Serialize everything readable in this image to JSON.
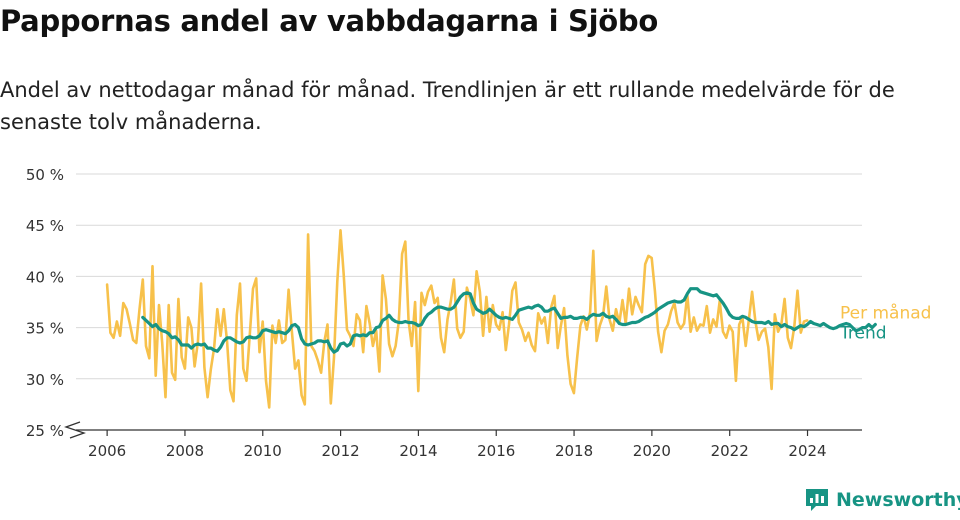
{
  "header": {
    "title": "Pappornas andel av vabbdagarna i Sjöbo",
    "subtitle": "Andel av nettodagar månad för månad. Trendlinjen är ett rullande medelvärde för de senaste tolv månaderna."
  },
  "brand": {
    "name": "Newsworthy",
    "icon": "newsworthy-chart-icon",
    "color": "#179484"
  },
  "chart_data": {
    "type": "line",
    "title": "",
    "xlabel": "",
    "ylabel": "",
    "xlim": [
      2005.2,
      2025.4
    ],
    "ylim": [
      25,
      50
    ],
    "y_axis_break": true,
    "yticks": [
      "25 %",
      "30 %",
      "35 %",
      "40 %",
      "45 %",
      "50 %"
    ],
    "ytick_values": [
      25,
      30,
      35,
      40,
      45,
      50
    ],
    "xticks": [
      "2006",
      "2008",
      "2010",
      "2012",
      "2014",
      "2016",
      "2018",
      "2020",
      "2022",
      "2024"
    ],
    "xtick_values": [
      2006,
      2008,
      2010,
      2012,
      2014,
      2016,
      2018,
      2020,
      2022,
      2024
    ],
    "grid": "horizontal",
    "legend": "right, at line ends",
    "series": [
      {
        "name": "Per månad",
        "color": "#f7c14b",
        "x_start": 2006.0,
        "x_step": 0.0833,
        "values": [
          39.2,
          34.5,
          34.0,
          35.6,
          34.2,
          37.4,
          36.8,
          35.4,
          33.8,
          33.5,
          36.8,
          39.7,
          33.2,
          32.0,
          41.0,
          30.3,
          37.2,
          33.5,
          28.2,
          37.2,
          30.6,
          29.9,
          37.8,
          32.1,
          31.0,
          36.0,
          35.0,
          31.2,
          33.6,
          39.3,
          31.1,
          28.2,
          30.9,
          33.0,
          36.8,
          34.2,
          36.8,
          33.6,
          28.9,
          27.8,
          36.2,
          39.3,
          31.0,
          29.8,
          34.2,
          38.8,
          39.8,
          32.6,
          35.6,
          29.8,
          27.2,
          35.2,
          33.5,
          35.7,
          33.5,
          33.8,
          38.7,
          34.6,
          31.0,
          31.8,
          28.4,
          27.5,
          44.1,
          33.2,
          32.7,
          31.8,
          30.6,
          33.6,
          35.3,
          27.6,
          32.1,
          39.5,
          44.5,
          40.2,
          34.8,
          34.2,
          33.2,
          36.3,
          35.7,
          32.6,
          37.1,
          35.4,
          33.2,
          34.7,
          30.7,
          40.1,
          37.8,
          33.4,
          32.2,
          33.2,
          35.6,
          42.2,
          43.4,
          35.6,
          33.2,
          37.5,
          28.8,
          38.4,
          37.2,
          38.5,
          39.1,
          37.4,
          37.9,
          34.0,
          32.6,
          35.8,
          37.5,
          39.7,
          34.9,
          34.0,
          34.6,
          38.9,
          37.8,
          36.2,
          40.5,
          38.5,
          34.2,
          38.0,
          34.6,
          37.2,
          35.3,
          34.8,
          36.5,
          32.8,
          35.3,
          38.6,
          39.4,
          35.5,
          34.8,
          33.7,
          34.5,
          33.3,
          32.7,
          36.4,
          35.4,
          36.0,
          33.5,
          37.0,
          38.1,
          33.0,
          35.2,
          36.9,
          32.3,
          29.5,
          28.6,
          32.0,
          35.2,
          36.1,
          34.8,
          36.5,
          42.5,
          33.7,
          35.2,
          36.1,
          39.0,
          35.8,
          34.7,
          36.8,
          35.4,
          37.7,
          35.4,
          38.8,
          36.3,
          38.0,
          37.2,
          36.5,
          41.2,
          42.0,
          41.8,
          38.6,
          34.6,
          32.6,
          34.7,
          35.3,
          36.6,
          37.4,
          35.5,
          34.9,
          35.4,
          38.2,
          34.6,
          36.0,
          34.7,
          35.3,
          35.2,
          37.1,
          34.5,
          35.8,
          35.1,
          37.6,
          34.6,
          34.0,
          35.2,
          34.6,
          29.8,
          35.3,
          36.0,
          33.2,
          35.8,
          38.5,
          35.6,
          33.8,
          34.6,
          34.9,
          33.1,
          29.0,
          36.3,
          34.6,
          35.3,
          37.8,
          34.0,
          33.0,
          35.1,
          38.6,
          34.5,
          35.6,
          35.7
        ]
      },
      {
        "name": "Trend",
        "color": "#179484",
        "x_start": 2006.9167,
        "x_step": 0.0833,
        "values": [
          36.0,
          35.7,
          35.4,
          35.1,
          35.3,
          34.9,
          34.7,
          34.6,
          34.4,
          34.0,
          34.1,
          33.8,
          33.3,
          33.3,
          33.3,
          33.0,
          33.3,
          33.4,
          33.3,
          33.4,
          33.0,
          33.0,
          32.8,
          32.7,
          33.1,
          33.7,
          34.0,
          34.0,
          33.8,
          33.6,
          33.5,
          33.6,
          34.0,
          34.1,
          34.0,
          34.0,
          34.2,
          34.7,
          34.8,
          34.7,
          34.6,
          34.5,
          34.6,
          34.5,
          34.4,
          34.7,
          35.2,
          35.3,
          35.0,
          33.9,
          33.4,
          33.3,
          33.4,
          33.5,
          33.7,
          33.7,
          33.6,
          33.7,
          33.0,
          32.6,
          32.8,
          33.4,
          33.5,
          33.2,
          33.4,
          34.2,
          34.3,
          34.2,
          34.3,
          34.2,
          34.5,
          34.5,
          35.0,
          35.1,
          35.7,
          35.9,
          36.2,
          35.8,
          35.6,
          35.5,
          35.5,
          35.6,
          35.5,
          35.5,
          35.4,
          35.2,
          35.3,
          35.9,
          36.3,
          36.5,
          36.8,
          37.0,
          37.0,
          36.9,
          36.8,
          36.8,
          37.0,
          37.5,
          38.0,
          38.3,
          38.4,
          38.3,
          37.4,
          36.8,
          36.6,
          36.4,
          36.5,
          36.8,
          36.5,
          36.2,
          36.0,
          35.9,
          36.0,
          35.9,
          35.8,
          36.2,
          36.7,
          36.8,
          36.9,
          37.0,
          36.9,
          37.1,
          37.2,
          37.0,
          36.6,
          36.6,
          36.8,
          36.9,
          36.4,
          35.9,
          36.0,
          36.0,
          36.1,
          35.9,
          35.9,
          36.0,
          36.0,
          35.8,
          36.1,
          36.3,
          36.2,
          36.2,
          36.4,
          36.1,
          36.0,
          36.1,
          35.8,
          35.4,
          35.3,
          35.3,
          35.4,
          35.5,
          35.5,
          35.6,
          35.8,
          36.0,
          36.1,
          36.3,
          36.5,
          36.8,
          37.0,
          37.2,
          37.4,
          37.5,
          37.6,
          37.5,
          37.5,
          37.7,
          38.3,
          38.8,
          38.8,
          38.8,
          38.5,
          38.4,
          38.3,
          38.2,
          38.1,
          38.2,
          37.8,
          37.4,
          36.9,
          36.3,
          36.0,
          35.9,
          35.9,
          36.1,
          36.0,
          35.8,
          35.6,
          35.5,
          35.5,
          35.5,
          35.4,
          35.6,
          35.3,
          35.4,
          35.4,
          35.1,
          35.3,
          35.1,
          35.0,
          34.8,
          35.0,
          35.2,
          35.1,
          35.3,
          35.6,
          35.4,
          35.3,
          35.2,
          35.4,
          35.2,
          35.0,
          34.9,
          35.0,
          35.2,
          35.3,
          35.4,
          35.3,
          35.0,
          34.7,
          34.8,
          35.0,
          35.0,
          35.3,
          35.0,
          35.3
        ]
      }
    ]
  }
}
